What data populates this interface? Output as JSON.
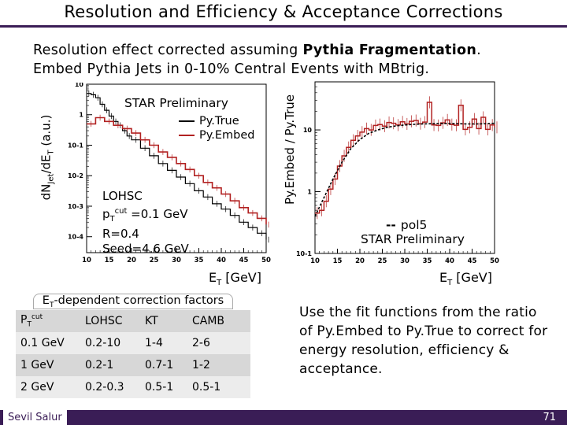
{
  "slide": {
    "title": "Resolution and Efficiency & Acceptance Corrections",
    "subtitle_line1_prefix": "Resolution effect corrected assuming ",
    "subtitle_line1_bold": "Pythia Fragmentation",
    "subtitle_line1_suffix": ".",
    "subtitle_line2": "Embed Pythia Jets in 0-10% Central Events with MBtrig.",
    "conclusion": "Use the fit functions from the ratio of Py.Embed to Py.True to correct for energy resolution, efficiency & acceptance.",
    "author": "Sevil Salur",
    "page_number": "71"
  },
  "colors": {
    "accent": "#3a1d56",
    "true_series": "#000000",
    "embed_series": "#b22222"
  },
  "chart_data": [
    {
      "type": "line",
      "name": "spectra",
      "title": "STAR Preliminary",
      "xlabel": "E_T [GeV]",
      "ylabel": "dN_Jet/dE_T (a.u.)",
      "y_scale": "log",
      "xlim": [
        10,
        50
      ],
      "ylim": [
        3e-05,
        10
      ],
      "x_ticks": [
        10,
        15,
        20,
        25,
        30,
        35,
        40,
        45,
        50
      ],
      "y_ticks": [
        {
          "v": 10,
          "label": "10"
        },
        {
          "v": 1,
          "label": "1"
        },
        {
          "v": 0.1,
          "label": "10-1"
        },
        {
          "v": 0.01,
          "label": "10-2"
        },
        {
          "v": 0.001,
          "label": "10-3"
        },
        {
          "v": 0.0001,
          "label": "10-4"
        }
      ],
      "legend": [
        "Py.True",
        "Py.Embed"
      ],
      "annotation_lines": [
        "LOHSC",
        "p_T^cut =0.1 GeV",
        "R=0.4",
        "Seed=4.6 GeV"
      ],
      "series": [
        {
          "name": "Py.True",
          "x": [
            10,
            11,
            12,
            13,
            14,
            15,
            16,
            17,
            18,
            19,
            20,
            22,
            24,
            26,
            28,
            30,
            32,
            34,
            36,
            38,
            40,
            42,
            44,
            46,
            48,
            50
          ],
          "values": [
            5,
            4.5,
            3.6,
            2.2,
            1.4,
            0.9,
            0.6,
            0.45,
            0.3,
            0.2,
            0.15,
            0.08,
            0.045,
            0.025,
            0.015,
            0.009,
            0.0055,
            0.0032,
            0.002,
            0.0012,
            0.0008,
            0.0005,
            0.0003,
            0.0002,
            0.00013,
            8e-05
          ]
        },
        {
          "name": "Py.Embed",
          "x": [
            10,
            12,
            14,
            16,
            18,
            20,
            22,
            24,
            26,
            28,
            30,
            32,
            34,
            36,
            38,
            40,
            42,
            44,
            46,
            48,
            50
          ],
          "values": [
            0.5,
            0.8,
            0.6,
            0.45,
            0.35,
            0.25,
            0.15,
            0.1,
            0.06,
            0.04,
            0.025,
            0.016,
            0.01,
            0.006,
            0.004,
            0.0025,
            0.0015,
            0.0009,
            0.0006,
            0.0004,
            0.00025
          ]
        }
      ]
    },
    {
      "type": "line",
      "name": "ratio",
      "xlabel": "E_T [GeV]",
      "ylabel": "Py.Embed / Py.True",
      "y_scale": "log",
      "xlim": [
        10,
        50
      ],
      "ylim": [
        0.1,
        60
      ],
      "x_ticks": [
        10,
        15,
        20,
        25,
        30,
        35,
        40,
        45,
        50
      ],
      "y_ticks": [
        {
          "v": 10,
          "label": "10"
        },
        {
          "v": 1,
          "label": "1"
        },
        {
          "v": 0.1,
          "label": "10-1"
        }
      ],
      "legend": [
        "pol5"
      ],
      "label": "STAR Preliminary",
      "series": [
        {
          "name": "ratio",
          "x": [
            10,
            11,
            12,
            13,
            14,
            15,
            16,
            17,
            18,
            19,
            20,
            21,
            22,
            23,
            24,
            25,
            26,
            27,
            28,
            29,
            30,
            31,
            32,
            33,
            34,
            35,
            36,
            37,
            38,
            39,
            40,
            41,
            42,
            43,
            44,
            45,
            46,
            47,
            48,
            49,
            50
          ],
          "values": [
            0.45,
            0.5,
            0.7,
            1.1,
            1.6,
            2.6,
            3.8,
            5.2,
            6.8,
            8.0,
            9.2,
            10.5,
            10.0,
            11.8,
            12.2,
            11.5,
            13.2,
            12.8,
            12.0,
            13.5,
            12.5,
            13.8,
            14.2,
            12.6,
            13.4,
            28.0,
            12.0,
            11.8,
            13.0,
            14.5,
            12.2,
            11.9,
            25.0,
            10.2,
            11.0,
            15.0,
            10.5,
            16.0,
            10.2,
            12.0,
            11.0
          ]
        },
        {
          "name": "pol5",
          "x": [
            10,
            12,
            14,
            16,
            18,
            20,
            22,
            24,
            26,
            28,
            30,
            32,
            34,
            36,
            38,
            40,
            42,
            44,
            46,
            48,
            50
          ],
          "values": [
            0.4,
            0.8,
            1.6,
            3.0,
            5.0,
            7.0,
            8.8,
            10.0,
            11.0,
            11.6,
            12.0,
            12.3,
            12.5,
            12.6,
            12.7,
            12.7,
            12.6,
            12.5,
            12.5,
            12.6,
            12.8
          ]
        }
      ]
    }
  ],
  "labels": {
    "left_ylabel": "dN_Jet/dE_T (a.u.)",
    "right_ylabel": "Py.Embed / Py.True",
    "xlabel_left": "E_T [GeV]",
    "xlabel_right": "E_T [GeV]",
    "left_title": "STAR Preliminary",
    "legend_true": "Py.True",
    "legend_embed": "Py.Embed",
    "annot": {
      "l1": "LOHSC",
      "l2a": "p",
      "l2b": "T",
      "l2c": "cut",
      "l2d": " =0.1 GeV",
      "l3": "R=0.4",
      "l4": "Seed=4.6 GeV"
    },
    "pol5": "pol5",
    "right_star": "STAR Preliminary"
  },
  "factors": {
    "title_a": "E",
    "title_b": "T",
    "title_c": "-dependent correction factors",
    "header": {
      "c0a": "P",
      "c0b": "T",
      "c0c": "cut",
      "c1": "LOHSC",
      "c2": "KT",
      "c3": "CAMB"
    },
    "rows": [
      {
        "c0": "0.1 GeV",
        "c1": "0.2-10",
        "c2": "1-4",
        "c3": "2-6"
      },
      {
        "c0": "1 GeV",
        "c1": "0.2-1",
        "c2": "0.7-1",
        "c3": "1-2"
      },
      {
        "c0": "2 GeV",
        "c1": "0.2-0.3",
        "c2": "0.5-1",
        "c3": "0.5-1"
      }
    ]
  }
}
